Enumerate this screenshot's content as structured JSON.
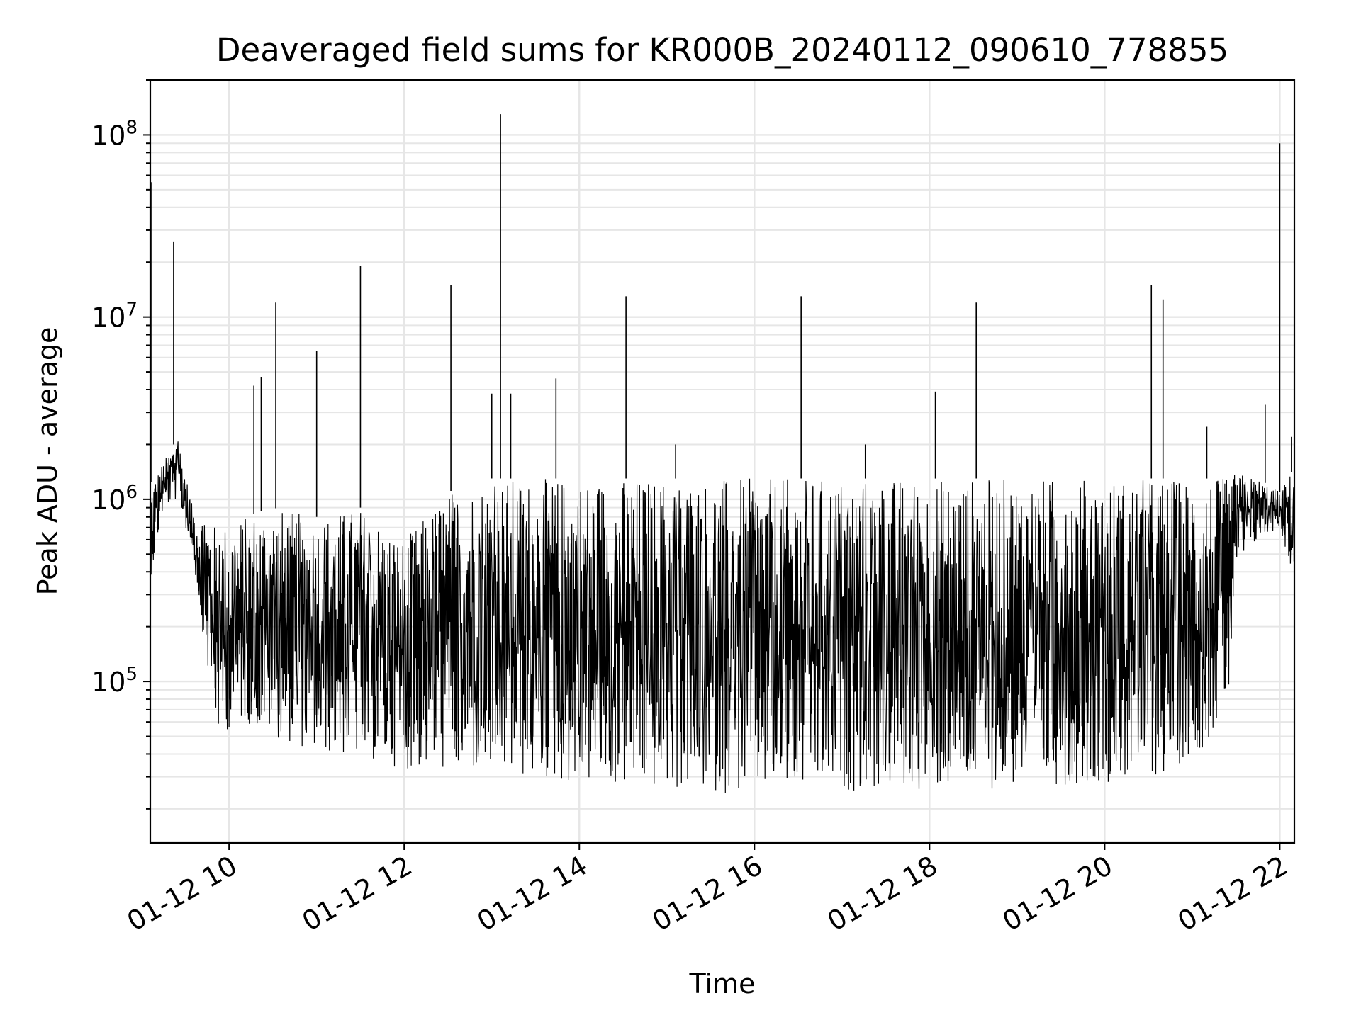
{
  "chart_data": {
    "type": "line",
    "title": "Deaveraged field sums for KR000B_20240112_090610_778855",
    "xlabel": "Time",
    "ylabel": "Peak ADU - average",
    "yscale": "log",
    "ylim": [
      13000,
      200000000
    ],
    "xlim": [
      "2024-01-12 09:06",
      "2024-01-12 22:10"
    ],
    "grid": true,
    "line_color": "#000000",
    "x_ticks": [
      {
        "t": "2024-01-12 10:00",
        "label": "01-12 10"
      },
      {
        "t": "2024-01-12 12:00",
        "label": "01-12 12"
      },
      {
        "t": "2024-01-12 14:00",
        "label": "01-12 14"
      },
      {
        "t": "2024-01-12 16:00",
        "label": "01-12 16"
      },
      {
        "t": "2024-01-12 18:00",
        "label": "01-12 18"
      },
      {
        "t": "2024-01-12 20:00",
        "label": "01-12 20"
      },
      {
        "t": "2024-01-12 22:00",
        "label": "01-12 22"
      }
    ],
    "y_ticks": [
      {
        "value": 100000,
        "base": "10",
        "exp": "5"
      },
      {
        "value": 1000000,
        "base": "10",
        "exp": "6"
      },
      {
        "value": 10000000,
        "base": "10",
        "exp": "7"
      },
      {
        "value": 100000000,
        "base": "10",
        "exp": "8"
      }
    ],
    "series": [
      {
        "type": "envelope",
        "description_points": "time, lower envelope, upper envelope",
        "points": [
          [
            "2024-01-12 09:06",
            350000,
            1200000
          ],
          [
            "2024-01-12 09:15",
            900000,
            1600000
          ],
          [
            "2024-01-12 09:25",
            1000000,
            2200000
          ],
          [
            "2024-01-12 09:35",
            500000,
            900000
          ],
          [
            "2024-01-12 09:45",
            120000,
            800000
          ],
          [
            "2024-01-12 09:52",
            50000,
            700000
          ],
          [
            "2024-01-12 10:10",
            60000,
            800000
          ],
          [
            "2024-01-12 10:30",
            50000,
            900000
          ],
          [
            "2024-01-12 11:00",
            40000,
            800000
          ],
          [
            "2024-01-12 11:30",
            38000,
            900000
          ],
          [
            "2024-01-12 12:00",
            33000,
            600000
          ],
          [
            "2024-01-12 12:30",
            32000,
            1100000
          ],
          [
            "2024-01-12 13:00",
            30000,
            1300000
          ],
          [
            "2024-01-12 14:00",
            27000,
            1300000
          ],
          [
            "2024-01-12 15:00",
            25000,
            1300000
          ],
          [
            "2024-01-12 16:00",
            24000,
            1300000
          ],
          [
            "2024-01-12 17:00",
            25000,
            1300000
          ],
          [
            "2024-01-12 18:00",
            25000,
            1300000
          ],
          [
            "2024-01-12 19:00",
            26000,
            1300000
          ],
          [
            "2024-01-12 20:00",
            28000,
            1300000
          ],
          [
            "2024-01-12 20:40",
            30000,
            1300000
          ],
          [
            "2024-01-12 21:10",
            45000,
            1300000
          ],
          [
            "2024-01-12 21:25",
            80000,
            1300000
          ],
          [
            "2024-01-12 21:30",
            400000,
            1400000
          ],
          [
            "2024-01-12 21:45",
            600000,
            1300000
          ],
          [
            "2024-01-12 22:00",
            700000,
            1100000
          ],
          [
            "2024-01-12 22:10",
            350000,
            1500000
          ]
        ]
      },
      {
        "type": "spikes",
        "points": [
          [
            "2024-01-12 09:07",
            55000000
          ],
          [
            "2024-01-12 09:22",
            26000000
          ],
          [
            "2024-01-12 10:17",
            4200000
          ],
          [
            "2024-01-12 10:22",
            4700000
          ],
          [
            "2024-01-12 10:32",
            12000000
          ],
          [
            "2024-01-12 11:00",
            6500000
          ],
          [
            "2024-01-12 11:30",
            19000000
          ],
          [
            "2024-01-12 12:32",
            15000000
          ],
          [
            "2024-01-12 13:00",
            3800000
          ],
          [
            "2024-01-12 13:06",
            130000000
          ],
          [
            "2024-01-12 13:13",
            3800000
          ],
          [
            "2024-01-12 13:44",
            4600000
          ],
          [
            "2024-01-12 14:32",
            13000000
          ],
          [
            "2024-01-12 15:06",
            2000000
          ],
          [
            "2024-01-12 16:32",
            13000000
          ],
          [
            "2024-01-12 17:16",
            2000000
          ],
          [
            "2024-01-12 18:04",
            3900000
          ],
          [
            "2024-01-12 18:32",
            12000000
          ],
          [
            "2024-01-12 20:32",
            15000000
          ],
          [
            "2024-01-12 20:40",
            12500000
          ],
          [
            "2024-01-12 21:10",
            2500000
          ],
          [
            "2024-01-12 21:50",
            3300000
          ],
          [
            "2024-01-12 22:00",
            90000000
          ],
          [
            "2024-01-12 22:08",
            2200000
          ]
        ]
      }
    ]
  }
}
